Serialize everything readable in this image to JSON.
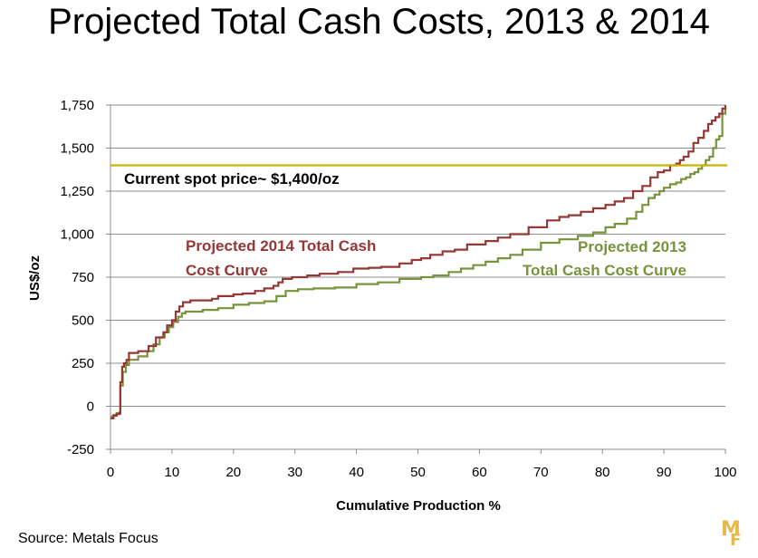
{
  "title": "Projected Total Cash Costs, 2013 & 2014",
  "source": "Source: Metals Focus",
  "logo": {
    "top": "M",
    "bottom": "F"
  },
  "chart_data": {
    "type": "line",
    "xlabel": "Cumulative Production %",
    "ylabel": "US$/oz",
    "xlim": [
      0,
      100
    ],
    "ylim": [
      -250,
      1750
    ],
    "xticks": [
      0,
      10,
      20,
      30,
      40,
      50,
      60,
      70,
      80,
      90,
      100
    ],
    "yticks": [
      -250,
      0,
      250,
      500,
      750,
      1000,
      1250,
      1500,
      1750
    ],
    "ytick_labels": [
      "-250",
      "0",
      "250",
      "500",
      "750",
      "1,000",
      "1,250",
      "1,500",
      "1,750"
    ],
    "grid": "horizontal",
    "reference_line": {
      "value": 1400,
      "label": "Current spot price~ $1,400/oz",
      "color": "#c8b400"
    },
    "series": [
      {
        "name": "Projected 2014 Total Cash Cost Curve",
        "label_lines": [
          "Projected 2014 Total Cash",
          "Cost Curve"
        ],
        "color": "#953735",
        "x": [
          0,
          0.5,
          1.0,
          1.5,
          1.6,
          1.9,
          2.2,
          2.6,
          3.0,
          4.5,
          6.2,
          7.4,
          8.6,
          9.2,
          10.0,
          10.6,
          11.2,
          11.8,
          13.0,
          16.5,
          17.5,
          20.0,
          21.5,
          23.5,
          25.0,
          26.5,
          27.3,
          28.0,
          29.5,
          32.0,
          34.0,
          37.0,
          39.5,
          42.0,
          44.0,
          47.0,
          49.0,
          50.5,
          52.0,
          54.0,
          56.0,
          58.0,
          61.0,
          63.0,
          65.0,
          68.0,
          71.0,
          73.0,
          74.5,
          76.5,
          78.5,
          80.5,
          82.0,
          83.5,
          85.0,
          86.5,
          87.8,
          89.0,
          90.0,
          91.0,
          92.0,
          92.6,
          93.2,
          94.0,
          94.8,
          95.6,
          96.5,
          97.2,
          97.8,
          98.4,
          99.0,
          99.5,
          100
        ],
        "y": [
          -70,
          -55,
          -45,
          -40,
          140,
          230,
          250,
          270,
          310,
          320,
          350,
          400,
          430,
          470,
          500,
          550,
          580,
          605,
          615,
          625,
          640,
          650,
          655,
          670,
          685,
          700,
          720,
          740,
          750,
          760,
          770,
          780,
          800,
          805,
          810,
          830,
          850,
          860,
          880,
          900,
          910,
          940,
          960,
          980,
          1000,
          1040,
          1080,
          1100,
          1110,
          1130,
          1150,
          1170,
          1190,
          1210,
          1250,
          1280,
          1330,
          1360,
          1370,
          1400,
          1410,
          1430,
          1450,
          1480,
          1530,
          1560,
          1600,
          1640,
          1660,
          1680,
          1700,
          1730,
          1750
        ]
      },
      {
        "name": "Projected 2013 Total Cash Cost Curve",
        "label_lines": [
          "Projected 2013",
          "Total Cash Cost Curve"
        ],
        "color": "#77933c",
        "x": [
          0,
          0.5,
          1.0,
          1.5,
          1.6,
          2.0,
          2.5,
          3.0,
          4.5,
          6.0,
          7.0,
          8.0,
          8.8,
          9.5,
          10.2,
          11.0,
          11.6,
          12.2,
          15.0,
          17.5,
          20.0,
          22.5,
          25.0,
          27.0,
          28.5,
          30.5,
          33.0,
          36.5,
          40.0,
          43.5,
          47.0,
          50.5,
          52.5,
          55.0,
          57.0,
          59.0,
          61.0,
          63.0,
          65.0,
          67.0,
          70.0,
          73.0,
          76.0,
          78.5,
          80.5,
          82.0,
          84.0,
          85.5,
          86.5,
          87.5,
          88.5,
          89.3,
          90.0,
          91.0,
          92.0,
          92.8,
          93.6,
          94.3,
          95.0,
          95.6,
          96.2,
          96.8,
          97.4,
          98.0,
          98.5,
          99.0,
          99.5,
          100
        ],
        "y": [
          -60,
          -50,
          -40,
          -35,
          120,
          200,
          240,
          270,
          290,
          320,
          360,
          400,
          430,
          460,
          490,
          520,
          540,
          550,
          560,
          570,
          590,
          600,
          610,
          640,
          670,
          680,
          685,
          690,
          710,
          720,
          740,
          750,
          760,
          780,
          800,
          820,
          840,
          860,
          880,
          910,
          950,
          970,
          990,
          1010,
          1040,
          1060,
          1090,
          1130,
          1170,
          1210,
          1230,
          1250,
          1270,
          1290,
          1300,
          1320,
          1330,
          1350,
          1360,
          1380,
          1400,
          1430,
          1450,
          1500,
          1550,
          1570,
          1700,
          1750
        ]
      }
    ]
  }
}
